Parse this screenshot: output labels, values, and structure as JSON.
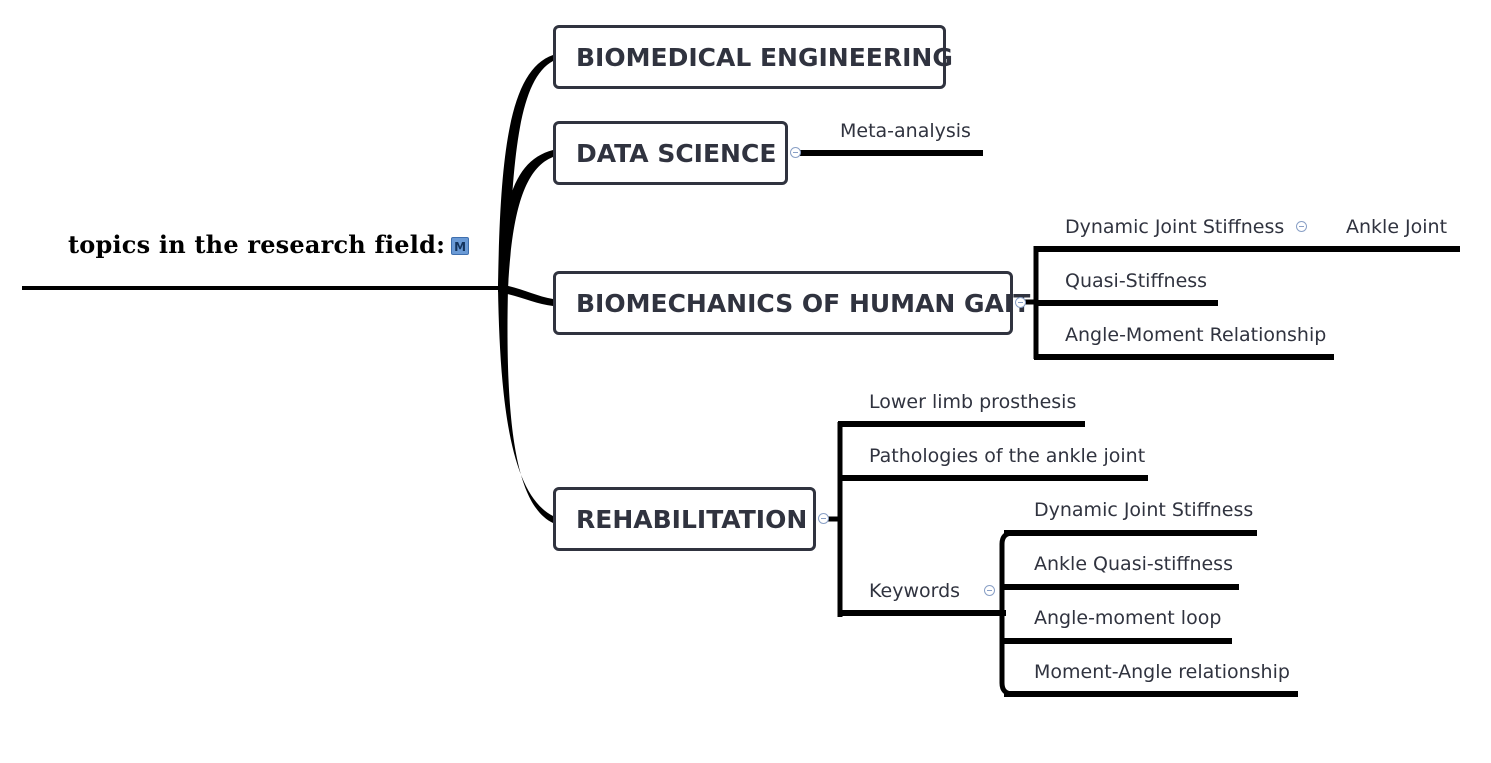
{
  "root": {
    "label": "topics in the research field:",
    "marker_icon": "M"
  },
  "topics": [
    {
      "label": "BIOMEDICAL ENGINEERING"
    },
    {
      "label": "DATA SCIENCE",
      "children": [
        "Meta-analysis"
      ]
    },
    {
      "label": "BIOMECHANICS OF HUMAN GAIT",
      "children": [
        {
          "label": "Dynamic Joint Stiffness",
          "children": [
            "Ankle Joint"
          ]
        },
        {
          "label": "Quasi-Stiffness"
        },
        {
          "label": "Angle-Moment Relationship"
        }
      ]
    },
    {
      "label": "REHABILITATION",
      "children": [
        {
          "label": "Lower limb prosthesis"
        },
        {
          "label": "Pathologies of the ankle joint"
        },
        {
          "label": "Keywords",
          "children": [
            "Dynamic Joint Stiffness",
            "Ankle Quasi-stiffness",
            "Angle-moment loop",
            "Moment-Angle relationship"
          ]
        }
      ]
    }
  ],
  "colors": {
    "line": "#000000",
    "topic_border": "#30333f",
    "text": "#30333f",
    "collapse_icon": "#8aa0c6",
    "marker_icon_bg": "#6a9ad6"
  }
}
